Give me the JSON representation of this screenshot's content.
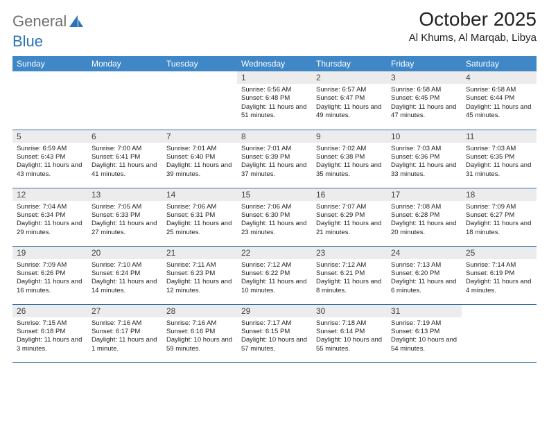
{
  "logo": {
    "word1": "General",
    "word2": "Blue"
  },
  "header": {
    "month_title": "October 2025",
    "location": "Al Khums, Al Marqab, Libya"
  },
  "calendar": {
    "dow_header_bg": "#3f87c6",
    "dow_header_fg": "#ffffff",
    "daynum_bg": "#ececec",
    "row_border_color": "#2f6fa8",
    "dow": [
      "Sunday",
      "Monday",
      "Tuesday",
      "Wednesday",
      "Thursday",
      "Friday",
      "Saturday"
    ],
    "weeks": [
      [
        {
          "n": "",
          "sr": "",
          "ss": "",
          "dl": ""
        },
        {
          "n": "",
          "sr": "",
          "ss": "",
          "dl": ""
        },
        {
          "n": "",
          "sr": "",
          "ss": "",
          "dl": ""
        },
        {
          "n": "1",
          "sr": "Sunrise: 6:56 AM",
          "ss": "Sunset: 6:48 PM",
          "dl": "Daylight: 11 hours and 51 minutes."
        },
        {
          "n": "2",
          "sr": "Sunrise: 6:57 AM",
          "ss": "Sunset: 6:47 PM",
          "dl": "Daylight: 11 hours and 49 minutes."
        },
        {
          "n": "3",
          "sr": "Sunrise: 6:58 AM",
          "ss": "Sunset: 6:45 PM",
          "dl": "Daylight: 11 hours and 47 minutes."
        },
        {
          "n": "4",
          "sr": "Sunrise: 6:58 AM",
          "ss": "Sunset: 6:44 PM",
          "dl": "Daylight: 11 hours and 45 minutes."
        }
      ],
      [
        {
          "n": "5",
          "sr": "Sunrise: 6:59 AM",
          "ss": "Sunset: 6:43 PM",
          "dl": "Daylight: 11 hours and 43 minutes."
        },
        {
          "n": "6",
          "sr": "Sunrise: 7:00 AM",
          "ss": "Sunset: 6:41 PM",
          "dl": "Daylight: 11 hours and 41 minutes."
        },
        {
          "n": "7",
          "sr": "Sunrise: 7:01 AM",
          "ss": "Sunset: 6:40 PM",
          "dl": "Daylight: 11 hours and 39 minutes."
        },
        {
          "n": "8",
          "sr": "Sunrise: 7:01 AM",
          "ss": "Sunset: 6:39 PM",
          "dl": "Daylight: 11 hours and 37 minutes."
        },
        {
          "n": "9",
          "sr": "Sunrise: 7:02 AM",
          "ss": "Sunset: 6:38 PM",
          "dl": "Daylight: 11 hours and 35 minutes."
        },
        {
          "n": "10",
          "sr": "Sunrise: 7:03 AM",
          "ss": "Sunset: 6:36 PM",
          "dl": "Daylight: 11 hours and 33 minutes."
        },
        {
          "n": "11",
          "sr": "Sunrise: 7:03 AM",
          "ss": "Sunset: 6:35 PM",
          "dl": "Daylight: 11 hours and 31 minutes."
        }
      ],
      [
        {
          "n": "12",
          "sr": "Sunrise: 7:04 AM",
          "ss": "Sunset: 6:34 PM",
          "dl": "Daylight: 11 hours and 29 minutes."
        },
        {
          "n": "13",
          "sr": "Sunrise: 7:05 AM",
          "ss": "Sunset: 6:33 PM",
          "dl": "Daylight: 11 hours and 27 minutes."
        },
        {
          "n": "14",
          "sr": "Sunrise: 7:06 AM",
          "ss": "Sunset: 6:31 PM",
          "dl": "Daylight: 11 hours and 25 minutes."
        },
        {
          "n": "15",
          "sr": "Sunrise: 7:06 AM",
          "ss": "Sunset: 6:30 PM",
          "dl": "Daylight: 11 hours and 23 minutes."
        },
        {
          "n": "16",
          "sr": "Sunrise: 7:07 AM",
          "ss": "Sunset: 6:29 PM",
          "dl": "Daylight: 11 hours and 21 minutes."
        },
        {
          "n": "17",
          "sr": "Sunrise: 7:08 AM",
          "ss": "Sunset: 6:28 PM",
          "dl": "Daylight: 11 hours and 20 minutes."
        },
        {
          "n": "18",
          "sr": "Sunrise: 7:09 AM",
          "ss": "Sunset: 6:27 PM",
          "dl": "Daylight: 11 hours and 18 minutes."
        }
      ],
      [
        {
          "n": "19",
          "sr": "Sunrise: 7:09 AM",
          "ss": "Sunset: 6:26 PM",
          "dl": "Daylight: 11 hours and 16 minutes."
        },
        {
          "n": "20",
          "sr": "Sunrise: 7:10 AM",
          "ss": "Sunset: 6:24 PM",
          "dl": "Daylight: 11 hours and 14 minutes."
        },
        {
          "n": "21",
          "sr": "Sunrise: 7:11 AM",
          "ss": "Sunset: 6:23 PM",
          "dl": "Daylight: 11 hours and 12 minutes."
        },
        {
          "n": "22",
          "sr": "Sunrise: 7:12 AM",
          "ss": "Sunset: 6:22 PM",
          "dl": "Daylight: 11 hours and 10 minutes."
        },
        {
          "n": "23",
          "sr": "Sunrise: 7:12 AM",
          "ss": "Sunset: 6:21 PM",
          "dl": "Daylight: 11 hours and 8 minutes."
        },
        {
          "n": "24",
          "sr": "Sunrise: 7:13 AM",
          "ss": "Sunset: 6:20 PM",
          "dl": "Daylight: 11 hours and 6 minutes."
        },
        {
          "n": "25",
          "sr": "Sunrise: 7:14 AM",
          "ss": "Sunset: 6:19 PM",
          "dl": "Daylight: 11 hours and 4 minutes."
        }
      ],
      [
        {
          "n": "26",
          "sr": "Sunrise: 7:15 AM",
          "ss": "Sunset: 6:18 PM",
          "dl": "Daylight: 11 hours and 3 minutes."
        },
        {
          "n": "27",
          "sr": "Sunrise: 7:16 AM",
          "ss": "Sunset: 6:17 PM",
          "dl": "Daylight: 11 hours and 1 minute."
        },
        {
          "n": "28",
          "sr": "Sunrise: 7:16 AM",
          "ss": "Sunset: 6:16 PM",
          "dl": "Daylight: 10 hours and 59 minutes."
        },
        {
          "n": "29",
          "sr": "Sunrise: 7:17 AM",
          "ss": "Sunset: 6:15 PM",
          "dl": "Daylight: 10 hours and 57 minutes."
        },
        {
          "n": "30",
          "sr": "Sunrise: 7:18 AM",
          "ss": "Sunset: 6:14 PM",
          "dl": "Daylight: 10 hours and 55 minutes."
        },
        {
          "n": "31",
          "sr": "Sunrise: 7:19 AM",
          "ss": "Sunset: 6:13 PM",
          "dl": "Daylight: 10 hours and 54 minutes."
        },
        {
          "n": "",
          "sr": "",
          "ss": "",
          "dl": ""
        }
      ]
    ]
  }
}
